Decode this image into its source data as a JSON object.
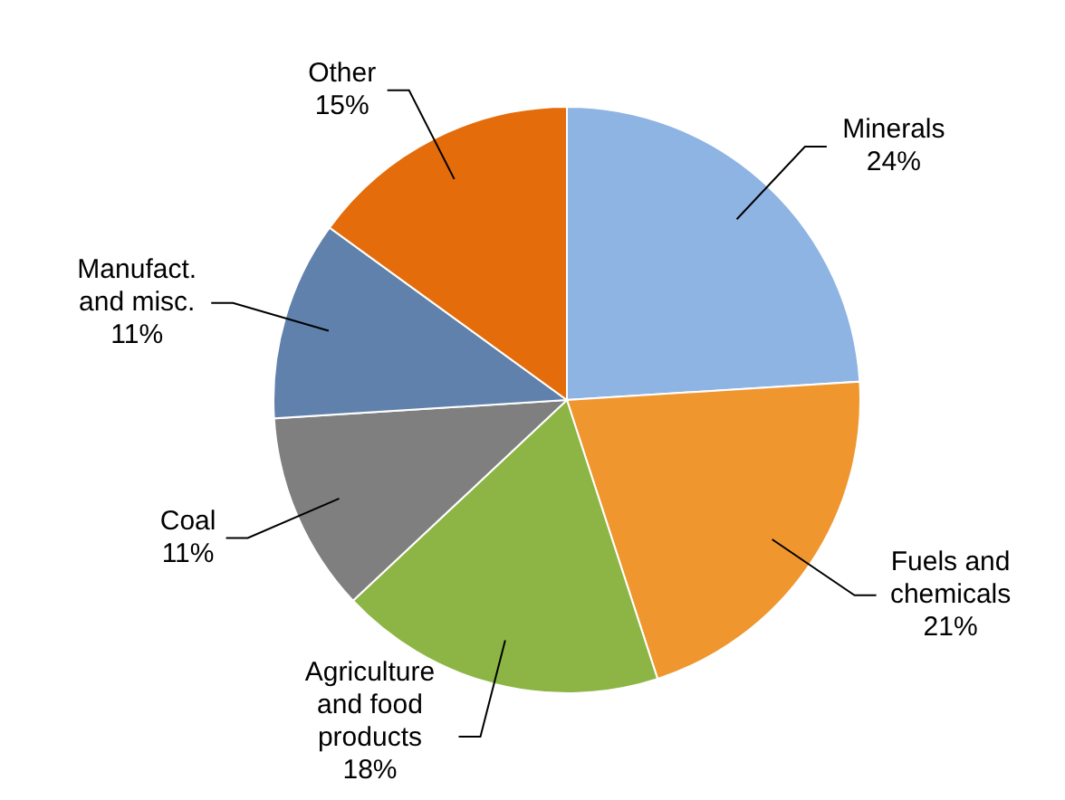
{
  "chart_data": {
    "type": "pie",
    "categories": [
      "Minerals",
      "Fuels and chemicals",
      "Agriculture and food products",
      "Coal",
      "Manufact. and misc.",
      "Other"
    ],
    "values": [
      24,
      21,
      18,
      11,
      11,
      15
    ],
    "value_labels": [
      "24%",
      "21%",
      "18%",
      "11%",
      "11%",
      "15%"
    ],
    "colors": [
      "#8eb4e3",
      "#f0962e",
      "#8db545",
      "#7f7f7f",
      "#5f81ab",
      "#e46c0a"
    ]
  }
}
